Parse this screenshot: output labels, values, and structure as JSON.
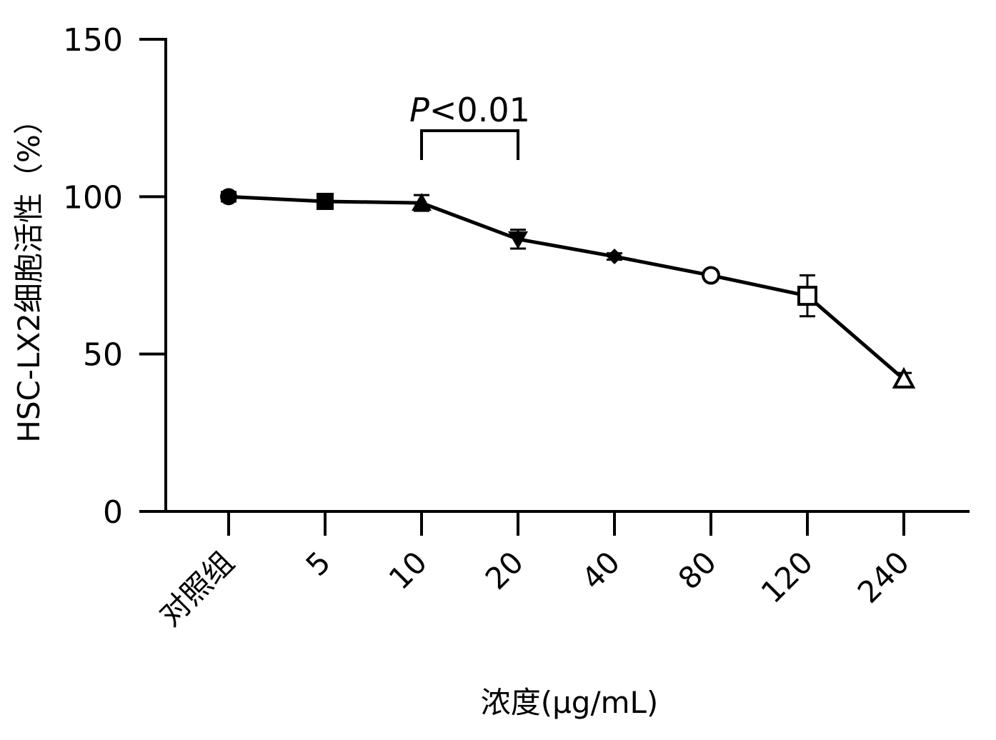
{
  "chart_data": {
    "type": "line",
    "ylabel": "HSC-LX2细胞活性（%）",
    "xlabel": "浓度(μg/mL)",
    "ylim": [
      0,
      150
    ],
    "y_ticks": [
      "0",
      "50",
      "100",
      "150"
    ],
    "categories": [
      "对照组",
      "5",
      "10",
      "20",
      "40",
      "80",
      "120",
      "240"
    ],
    "series": [
      {
        "values": [
          100,
          98.5,
          98,
          86.5,
          81,
          75,
          68.5,
          42
        ],
        "errors": [
          1.5,
          1,
          2.5,
          3,
          1,
          1,
          6.5,
          2
        ],
        "markers": [
          "filled-circle",
          "filled-square",
          "filled-triangle-up",
          "filled-triangle-down",
          "filled-diamond",
          "open-circle",
          "open-square",
          "open-triangle-up"
        ],
        "color": "#000000"
      }
    ],
    "annotation": {
      "label_italic": "P",
      "label_rest": "<0.01",
      "from_category": "10",
      "to_category": "20"
    },
    "grid": false,
    "legend": "none"
  }
}
